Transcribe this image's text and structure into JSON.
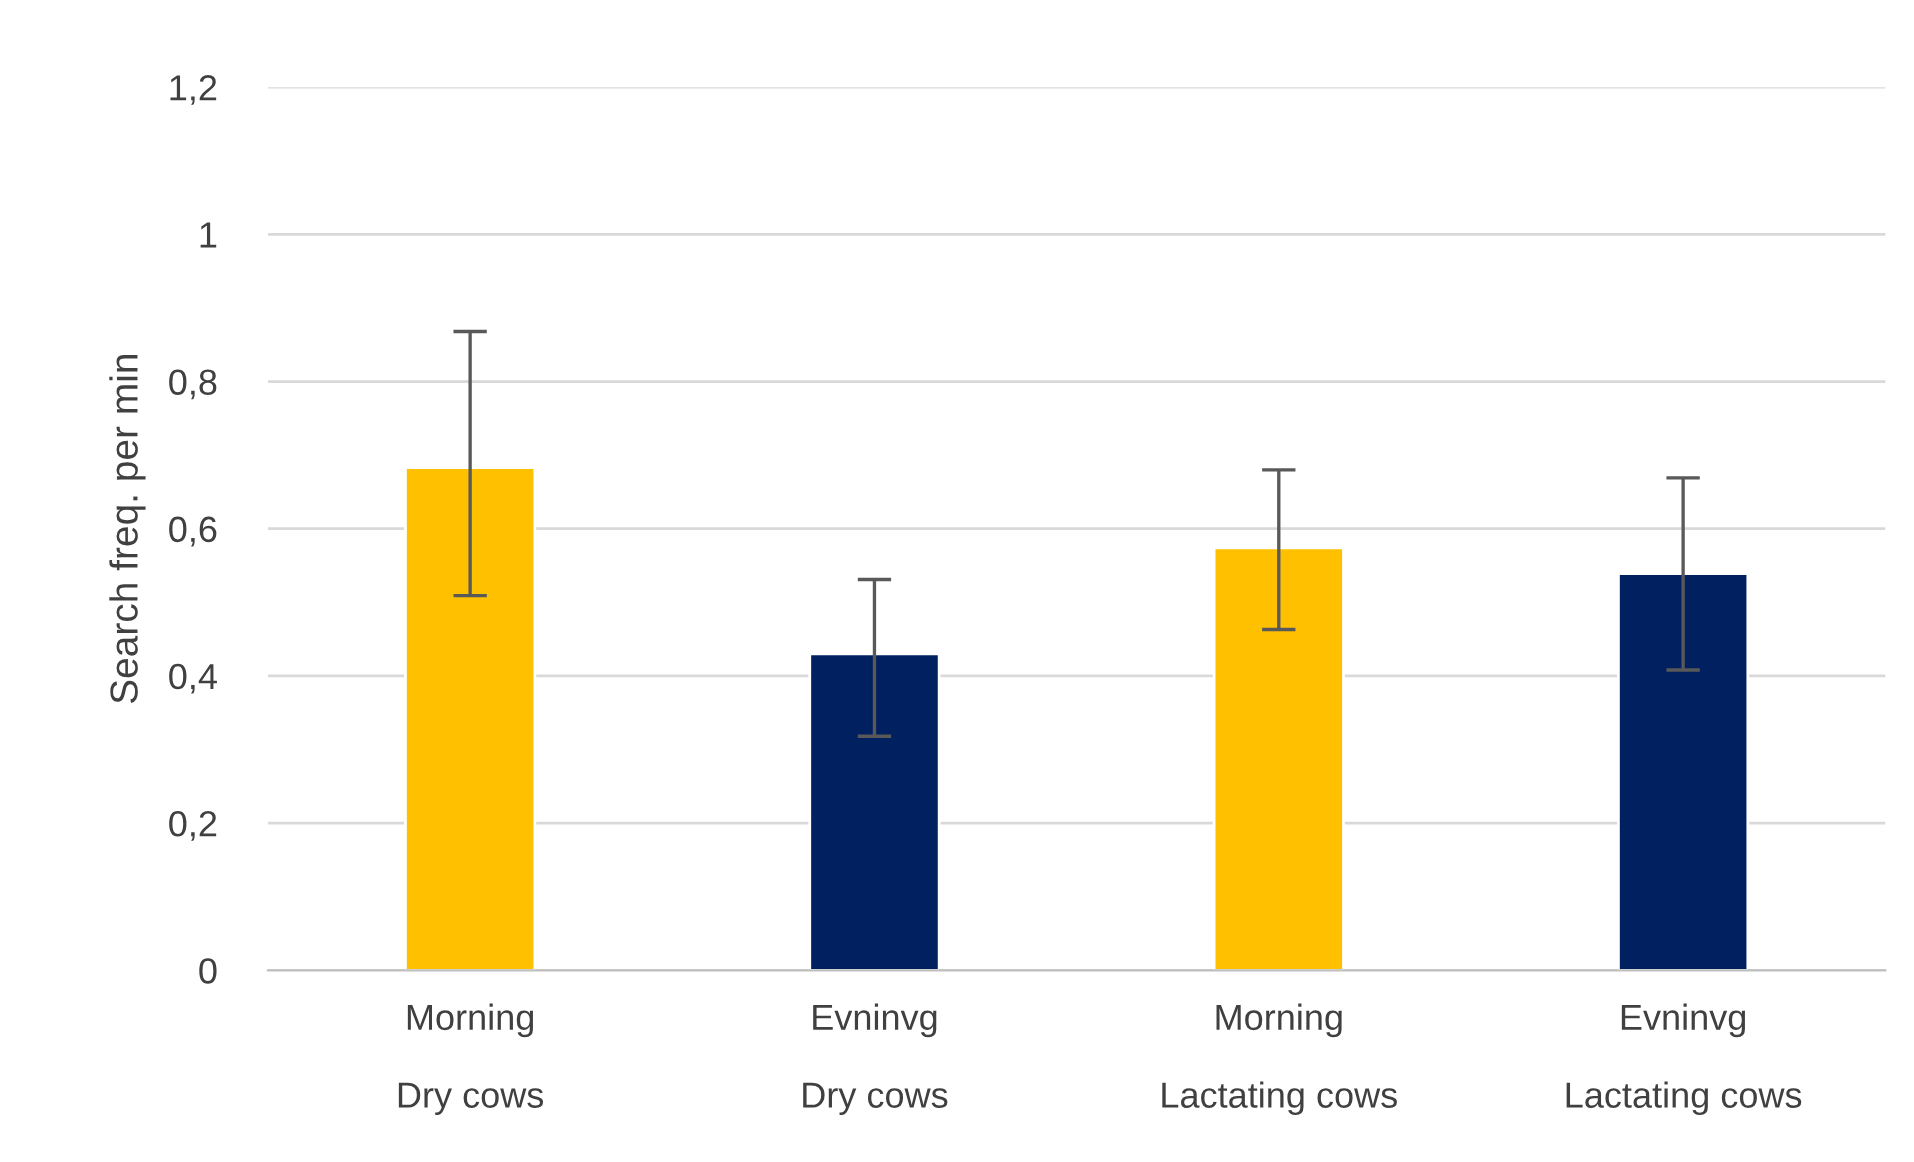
{
  "chart_data": {
    "type": "bar",
    "ylabel": "Search freq. per min",
    "categories": [
      "Morning\n\nDry cows",
      "Evninvg\n\nDry cows",
      "Morning\n\nLactating cows",
      "Evninvg\n\nLactating cows"
    ],
    "values": [
      0.683,
      0.43,
      0.574,
      0.539
    ],
    "colors": [
      "#ffc000",
      "#002060",
      "#ffc000",
      "#002060"
    ],
    "errors": [
      [
        0.509,
        0.868
      ],
      [
        0.318,
        0.531
      ],
      [
        0.463,
        0.68
      ],
      [
        0.408,
        0.669
      ]
    ],
    "ylim": [
      0,
      1.2
    ],
    "yticks": [
      0,
      {
        "value": 0.2,
        "label": "0,2"
      },
      {
        "value": 0.4,
        "label": "0,4"
      },
      {
        "value": 0.6,
        "label": "0,6"
      },
      {
        "value": 0.8,
        "label": "0,8"
      },
      1,
      {
        "value": 1.2,
        "label": "1,2"
      }
    ],
    "grid": "y"
  }
}
